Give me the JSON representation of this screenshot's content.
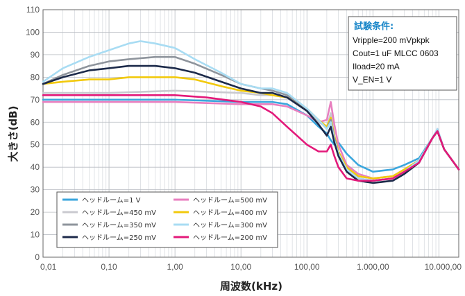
{
  "chart_data": {
    "type": "line",
    "xscale": "log",
    "xlim": [
      0.01,
      20000
    ],
    "ylim": [
      0,
      110
    ],
    "xlabel": "周波数(kHz)",
    "ylabel": "大きさ(dB)",
    "grid": true,
    "legend_position": "bottom-left",
    "x_tick_labels": [
      {
        "value": 0.01,
        "label": "0,01"
      },
      {
        "value": 0.1,
        "label": "0,10"
      },
      {
        "value": 1,
        "label": "1,00"
      },
      {
        "value": 10,
        "label": "10,00"
      },
      {
        "value": 100,
        "label": "100,00"
      },
      {
        "value": 1000,
        "label": "1.000,00"
      },
      {
        "value": 10000,
        "label": "10.000,00"
      }
    ],
    "y_tick_labels": [
      "0",
      "10",
      "20",
      "30",
      "40",
      "50",
      "60",
      "70",
      "80",
      "90",
      "100",
      "110"
    ],
    "conditions": {
      "title": "試験条件:",
      "lines": [
        "Vripple=200 mVpkpk",
        "Cout=1 uF MLCC 0603",
        "Iload=20 mA",
        "V_EN=1 V"
      ]
    },
    "series": [
      {
        "name": "ヘッドルーム=1 V",
        "color": "#3aa6dd",
        "x": [
          0.01,
          0.1,
          1,
          10,
          20,
          30,
          50,
          100,
          150,
          200,
          230,
          260,
          300,
          400,
          600,
          1000,
          2000,
          3000,
          5000,
          8000,
          9500,
          12000,
          20000
        ],
        "y": [
          70,
          70,
          70,
          69,
          69,
          69,
          68,
          63,
          58,
          55,
          52,
          50,
          51,
          46,
          41,
          38,
          39,
          41,
          44,
          53,
          56,
          48,
          39
        ]
      },
      {
        "name": "ヘッドルーム=500 mV",
        "color": "#e87fbf",
        "x": [
          0.01,
          0.1,
          1,
          10,
          20,
          30,
          50,
          100,
          150,
          200,
          230,
          260,
          300,
          400,
          600,
          1000,
          2000,
          3000,
          5000,
          8000,
          9500,
          12000,
          20000
        ],
        "y": [
          69,
          69,
          69,
          68,
          68,
          68,
          67,
          63,
          60,
          61,
          69,
          59,
          50,
          41,
          37,
          35,
          36,
          39,
          43,
          53,
          57,
          48,
          39
        ]
      },
      {
        "name": "ヘッドルーム=450 mV",
        "color": "#c9c9cf",
        "x": [
          0.01,
          0.1,
          1,
          10,
          20,
          30,
          50,
          100,
          150,
          200,
          230,
          260,
          300,
          400,
          600,
          1000,
          2000,
          3000,
          5000,
          8000,
          9500,
          12000,
          20000
        ],
        "y": [
          73,
          73,
          74,
          73,
          72,
          72,
          71,
          65,
          60,
          58,
          64,
          54,
          47,
          40,
          36,
          35,
          36,
          39,
          43,
          53,
          56,
          48,
          39
        ]
      },
      {
        "name": "ヘッドルーム=400 mV",
        "color": "#f2c90c",
        "x": [
          0.01,
          0.02,
          0.05,
          0.1,
          0.2,
          0.5,
          1,
          2,
          5,
          10,
          20,
          30,
          50,
          100,
          150,
          200,
          230,
          260,
          300,
          400,
          600,
          1000,
          2000,
          3000,
          5000,
          8000,
          9500,
          12000,
          20000
        ],
        "y": [
          77,
          78,
          79,
          79,
          80,
          80,
          80,
          79,
          76,
          74,
          73,
          72,
          71,
          66,
          61,
          58,
          62,
          54,
          47,
          40,
          36,
          35,
          36,
          39,
          43,
          53,
          56,
          48,
          39
        ]
      },
      {
        "name": "ヘッドルーム=350 mV",
        "color": "#8e949c",
        "x": [
          0.01,
          0.02,
          0.05,
          0.1,
          0.2,
          0.5,
          1,
          2,
          5,
          10,
          20,
          30,
          50,
          100,
          150,
          200,
          230,
          260,
          300,
          400,
          600,
          1000,
          2000,
          3000,
          5000,
          8000,
          9500,
          12000,
          20000
        ],
        "y": [
          77,
          81,
          85,
          87,
          88,
          89,
          89,
          86,
          81,
          77,
          75,
          74,
          72,
          66,
          61,
          57,
          61,
          53,
          46,
          39,
          35,
          34,
          35,
          38,
          43,
          53,
          56,
          48,
          39
        ]
      },
      {
        "name": "ヘッドルーム=300 mV",
        "color": "#a8dcf3",
        "x": [
          0.01,
          0.02,
          0.05,
          0.1,
          0.2,
          0.3,
          0.5,
          1,
          2,
          5,
          10,
          20,
          30,
          50,
          100,
          150,
          200,
          230,
          260,
          300,
          400,
          600,
          1000,
          2000,
          3000,
          5000,
          8000,
          9500,
          12000,
          20000
        ],
        "y": [
          78,
          84,
          89,
          92,
          95,
          96,
          95,
          93,
          88,
          82,
          77,
          75,
          75,
          73,
          66,
          61,
          57,
          60,
          52,
          46,
          39,
          35,
          34,
          35,
          38,
          43,
          53,
          57,
          48,
          39
        ]
      },
      {
        "name": "ヘッドルーム=250 mV",
        "color": "#1c2a4a",
        "x": [
          0.01,
          0.02,
          0.05,
          0.1,
          0.2,
          0.5,
          1,
          2,
          5,
          10,
          20,
          30,
          50,
          100,
          150,
          200,
          230,
          260,
          300,
          400,
          600,
          1000,
          2000,
          3000,
          5000,
          8000,
          9500,
          12000,
          20000
        ],
        "y": [
          77,
          80,
          83,
          84,
          85,
          85,
          84,
          82,
          78,
          75,
          73,
          73,
          71,
          65,
          59,
          54,
          58,
          51,
          45,
          38,
          34,
          33,
          34,
          37,
          42,
          53,
          56,
          48,
          39
        ]
      },
      {
        "name": "ヘッドルーム=200 mV",
        "color": "#e3197a",
        "x": [
          0.01,
          0.1,
          1,
          3,
          10,
          20,
          30,
          50,
          100,
          150,
          200,
          230,
          260,
          300,
          400,
          600,
          1000,
          2000,
          3000,
          5000,
          8000,
          9500,
          12000,
          20000
        ],
        "y": [
          72,
          72,
          72,
          71,
          69,
          67,
          64,
          58,
          50,
          47,
          47,
          50,
          45,
          40,
          35,
          34,
          34,
          35,
          38,
          42,
          53,
          56,
          48,
          39
        ]
      }
    ]
  }
}
